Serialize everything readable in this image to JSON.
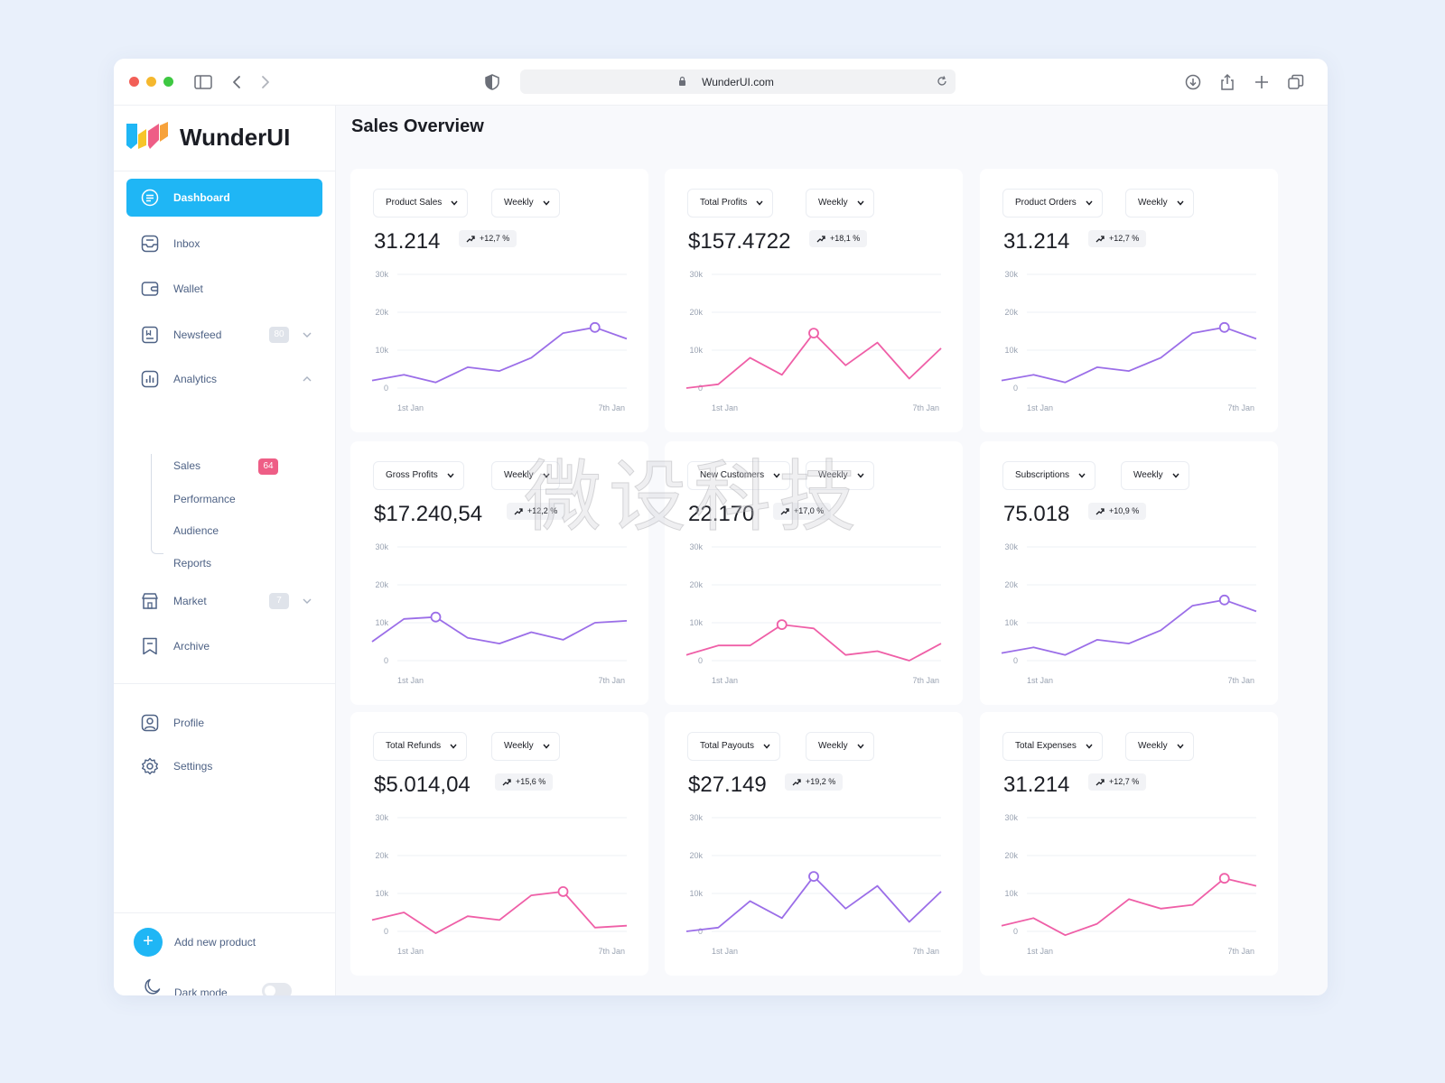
{
  "browser": {
    "url": "WunderUI.com"
  },
  "sidebar": {
    "brand": "WunderUI",
    "nav": [
      {
        "label": "Dashboard",
        "icon": "dashboard-icon",
        "active": true
      },
      {
        "label": "Inbox",
        "icon": "inbox-icon"
      },
      {
        "label": "Wallet",
        "icon": "wallet-icon"
      },
      {
        "label": "Newsfeed",
        "icon": "newsfeed-icon",
        "badge": "80"
      },
      {
        "label": "Analytics",
        "icon": "analytics-icon"
      }
    ],
    "analytics_sub": [
      {
        "label": "Sales",
        "badge": "64"
      },
      {
        "label": "Performance"
      },
      {
        "label": "Audience"
      },
      {
        "label": "Reports"
      }
    ],
    "market": {
      "label": "Market",
      "badge": "7"
    },
    "archive": {
      "label": "Archive"
    },
    "profile": {
      "label": "Profile"
    },
    "settings": {
      "label": "Settings"
    },
    "add_product": "Add new product",
    "dark_mode": {
      "label": "Dark mode",
      "on": false
    }
  },
  "main": {
    "title": "Sales Overview",
    "watermark": "微设科技"
  },
  "colors": {
    "accent": "#1fb6f5",
    "purple": "#9b6ee8",
    "pink": "#ef5fa7",
    "badge_pink": "#ee5e86"
  },
  "chart_data": [
    {
      "type": "line",
      "metric": "Product Sales",
      "period": "Weekly",
      "value": "31.214",
      "change": "+12,7 %",
      "color": "purple",
      "x_labels": [
        "1st Jan",
        "7th Jan"
      ],
      "y_ticks": [
        "30k",
        "20k",
        "10k",
        "0"
      ],
      "ylim": [
        0,
        30000
      ],
      "values": [
        2000,
        3500,
        1500,
        5500,
        4500,
        8000,
        14500,
        16000,
        13000
      ],
      "highlight": 7
    },
    {
      "type": "line",
      "metric": "Total Profits",
      "period": "Weekly",
      "value": "$157.4722",
      "change": "+18,1 %",
      "color": "pink",
      "x_labels": [
        "1st Jan",
        "7th Jan"
      ],
      "y_ticks": [
        "30k",
        "20k",
        "10k",
        "0"
      ],
      "ylim": [
        0,
        30000
      ],
      "values": [
        0,
        1000,
        8000,
        3500,
        14500,
        6000,
        12000,
        2500,
        10500
      ],
      "highlight": 4
    },
    {
      "type": "line",
      "metric": "Product Orders",
      "period": "Weekly",
      "value": "31.214",
      "change": "+12,7 %",
      "color": "purple",
      "x_labels": [
        "1st Jan",
        "7th Jan"
      ],
      "y_ticks": [
        "30k",
        "20k",
        "10k",
        "0"
      ],
      "ylim": [
        0,
        30000
      ],
      "values": [
        2000,
        3500,
        1500,
        5500,
        4500,
        8000,
        14500,
        16000,
        13000
      ],
      "highlight": 7
    },
    {
      "type": "line",
      "metric": "Gross Profits",
      "period": "Weekly",
      "value": "$17.240,54",
      "change": "+12,2 %",
      "color": "purple",
      "x_labels": [
        "1st Jan",
        "7th Jan"
      ],
      "y_ticks": [
        "30k",
        "20k",
        "10k",
        "0"
      ],
      "ylim": [
        0,
        30000
      ],
      "values": [
        5000,
        11000,
        11500,
        6000,
        4500,
        7500,
        5500,
        10000,
        10500
      ],
      "highlight": 2
    },
    {
      "type": "line",
      "metric": "New Customers",
      "period": "Weekly",
      "value": "22.170",
      "change": "+17,0 %",
      "color": "pink",
      "x_labels": [
        "1st Jan",
        "7th Jan"
      ],
      "y_ticks": [
        "30k",
        "20k",
        "10k",
        "0"
      ],
      "ylim": [
        0,
        30000
      ],
      "values": [
        1500,
        4000,
        4000,
        9500,
        8500,
        1500,
        2500,
        0,
        4500
      ],
      "highlight": 3
    },
    {
      "type": "line",
      "metric": "Subscriptions",
      "period": "Weekly",
      "value": "75.018",
      "change": "+10,9 %",
      "color": "purple",
      "x_labels": [
        "1st Jan",
        "7th Jan"
      ],
      "y_ticks": [
        "30k",
        "20k",
        "10k",
        "0"
      ],
      "ylim": [
        0,
        30000
      ],
      "values": [
        2000,
        3500,
        1500,
        5500,
        4500,
        8000,
        14500,
        16000,
        13000
      ],
      "highlight": 7
    },
    {
      "type": "line",
      "metric": "Total Refunds",
      "period": "Weekly",
      "value": "$5.014,04",
      "change": "+15,6 %",
      "color": "pink",
      "x_labels": [
        "1st Jan",
        "7th Jan"
      ],
      "y_ticks": [
        "30k",
        "20k",
        "10k",
        "0"
      ],
      "ylim": [
        0,
        30000
      ],
      "values": [
        3000,
        5000,
        -500,
        4000,
        3000,
        9500,
        10500,
        1000,
        1500
      ],
      "highlight": 6
    },
    {
      "type": "line",
      "metric": "Total Payouts",
      "period": "Weekly",
      "value": "$27.149",
      "change": "+19,2 %",
      "color": "purple",
      "x_labels": [
        "1st Jan",
        "7th Jan"
      ],
      "y_ticks": [
        "30k",
        "20k",
        "10k",
        "0"
      ],
      "ylim": [
        0,
        30000
      ],
      "values": [
        0,
        1000,
        8000,
        3500,
        14500,
        6000,
        12000,
        2500,
        10500
      ],
      "highlight": 4
    },
    {
      "type": "line",
      "metric": "Total Expenses",
      "period": "Weekly",
      "value": "31.214",
      "change": "+12,7 %",
      "color": "pink",
      "x_labels": [
        "1st Jan",
        "7th Jan"
      ],
      "y_ticks": [
        "30k",
        "20k",
        "10k",
        "0"
      ],
      "ylim": [
        0,
        30000
      ],
      "values": [
        1500,
        3500,
        -1000,
        2000,
        8500,
        6000,
        7000,
        14000,
        12000
      ],
      "highlight": 7
    }
  ]
}
